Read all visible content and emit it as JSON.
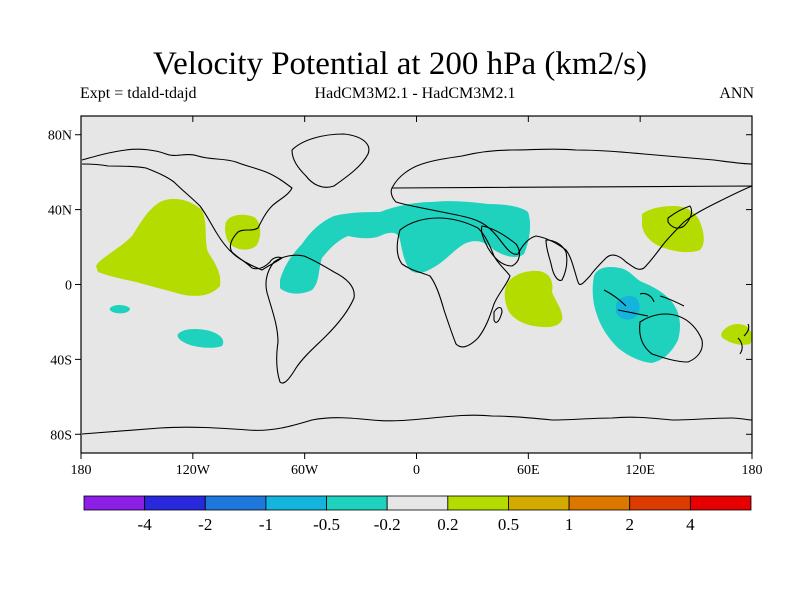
{
  "header": {
    "title": "Velocity Potential at 200 hPa (km2/s)",
    "left": "Expt = tdald-tdajd",
    "center": "HadCM3M2.1 - HadCM3M2.1",
    "right": "ANN"
  },
  "map": {
    "projection": "cylindrical-equidistant",
    "lon_range": [
      -180,
      180
    ],
    "lat_range": [
      -90,
      90
    ],
    "lat_ticks": [
      {
        "value": 80,
        "label": "80N"
      },
      {
        "value": 40,
        "label": "40N"
      },
      {
        "value": 0,
        "label": "0"
      },
      {
        "value": -40,
        "label": "40S"
      },
      {
        "value": -80,
        "label": "80S"
      }
    ],
    "lon_ticks": [
      {
        "value": -180,
        "label": "180"
      },
      {
        "value": -120,
        "label": "120W"
      },
      {
        "value": -60,
        "label": "60W"
      },
      {
        "value": 0,
        "label": "0"
      },
      {
        "value": 60,
        "label": "60E"
      },
      {
        "value": 120,
        "label": "120E"
      },
      {
        "value": 180,
        "label": "180"
      }
    ],
    "background_color": "#e6e6e6"
  },
  "colorbar": {
    "colors": [
      "#8c1ee6",
      "#2828dc",
      "#1e78dc",
      "#14b4dc",
      "#1ed2be",
      "#e6e6e6",
      "#b4dc00",
      "#d2aa00",
      "#dc7800",
      "#dc3c00",
      "#e60000"
    ],
    "labels": [
      "-4",
      "-2",
      "-1",
      "-0.5",
      "-0.2",
      "0.2",
      "0.5",
      "1",
      "2",
      "4"
    ]
  },
  "chart_data": {
    "type": "heatmap",
    "title": "Velocity Potential at 200 hPa (km2/s)",
    "field": "velocity potential difference at 200 hPa",
    "units": "km2/s",
    "levels": [
      -4,
      -2,
      -1,
      -0.5,
      -0.2,
      0.2,
      0.5,
      1,
      2,
      4
    ],
    "regions": [
      {
        "name": "North Pacific positive",
        "sign": "positive",
        "range": "0.2 to 0.5",
        "lon_center": -145,
        "lat_center": 20
      },
      {
        "name": "Gulf of Mexico positive",
        "sign": "positive",
        "range": "0.2 to 0.5",
        "lon_center": -95,
        "lat_center": 28
      },
      {
        "name": "Tropical Atlantic / North Africa / Middle East negative",
        "sign": "negative",
        "range": "-0.5 to -0.2",
        "lon_center": 0,
        "lat_center": 22
      },
      {
        "name": "Western Indian Ocean positive",
        "sign": "positive",
        "range": "0.2 to 0.5",
        "lon_center": 60,
        "lat_center": -10
      },
      {
        "name": "Maritime Continent / Australia negative",
        "sign": "negative",
        "range": "-0.5 to -0.2",
        "lon_center": 118,
        "lat_center": -15
      },
      {
        "name": "Maritime Continent core",
        "sign": "negative",
        "range": "-1 to -0.5",
        "lon_center": 115,
        "lat_center": -12
      },
      {
        "name": "Japan / NW Pacific positive",
        "sign": "positive",
        "range": "0.2 to 0.5",
        "lon_center": 135,
        "lat_center": 33
      },
      {
        "name": "Tasman Sea positive",
        "sign": "positive",
        "range": "0.2 to 0.5",
        "lon_center": 172,
        "lat_center": -25
      },
      {
        "name": "Central Pacific small negative",
        "sign": "negative",
        "range": "-0.5 to -0.2",
        "lon_center": -153,
        "lat_center": -13
      },
      {
        "name": "South Pacific negative",
        "sign": "negative",
        "range": "-0.5 to -0.2",
        "lon_center": -108,
        "lat_center": -28
      }
    ]
  }
}
